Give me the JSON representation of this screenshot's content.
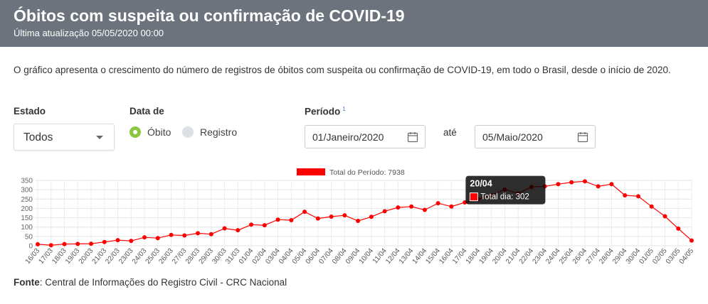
{
  "header": {
    "title": "Óbitos com suspeita ou confirmação de COVID-19",
    "subtitle": "Última atualização 05/05/2020 00:00",
    "bg_color": "#6c737c"
  },
  "description": "O gráfico apresenta o crescimento do número de registros de óbitos com suspeita ou confirmação de COVID-19, em todo o Brasil, desde o início de 2020.",
  "filters": {
    "estado_label": "Estado",
    "estado_value": "Todos",
    "data_de_label": "Data de",
    "radio_obito": "Óbito",
    "radio_registro": "Registro",
    "radio_selected": "Óbito",
    "periodo_label": "Período",
    "periodo_sup": "1",
    "date_from": "01/Janeiro/2020",
    "ate_label": "até",
    "date_to": "05/Maio/2020",
    "accent_color": "#8cc63f"
  },
  "chart_data": {
    "type": "line",
    "legend_label": "Total do Período: 7938",
    "legend_position": "top-center",
    "series_color": "#ff0000",
    "x": [
      "16/03",
      "17/03",
      "18/03",
      "19/03",
      "20/03",
      "21/03",
      "22/03",
      "23/03",
      "24/03",
      "25/03",
      "26/03",
      "27/03",
      "28/03",
      "29/03",
      "30/03",
      "31/03",
      "01/04",
      "02/04",
      "03/04",
      "04/04",
      "05/04",
      "06/04",
      "07/04",
      "08/04",
      "09/04",
      "10/04",
      "11/04",
      "12/04",
      "13/04",
      "14/04",
      "15/04",
      "16/04",
      "17/04",
      "18/04",
      "19/04",
      "20/04",
      "21/04",
      "22/04",
      "23/04",
      "24/04",
      "25/04",
      "26/04",
      "27/04",
      "28/04",
      "29/04",
      "30/04",
      "01/05",
      "02/05",
      "03/05",
      "04/05"
    ],
    "values": [
      8,
      3,
      9,
      10,
      11,
      20,
      30,
      26,
      45,
      41,
      58,
      55,
      67,
      62,
      93,
      83,
      113,
      110,
      140,
      137,
      182,
      146,
      156,
      163,
      133,
      155,
      185,
      205,
      210,
      192,
      228,
      210,
      232,
      250,
      270,
      302,
      280,
      315,
      318,
      330,
      340,
      345,
      318,
      330,
      270,
      265,
      210,
      158,
      92,
      28
    ],
    "ylim": [
      0,
      350
    ],
    "yticks": [
      0,
      50,
      100,
      150,
      200,
      250,
      300,
      350
    ],
    "grid": true,
    "tooltip": {
      "title": "20/04",
      "text": "Total dia: 302"
    }
  },
  "footer": {
    "fonte_label": "Fonte",
    "fonte_text": ": Central de Informações do Registro Civil - CRC Nacional"
  }
}
